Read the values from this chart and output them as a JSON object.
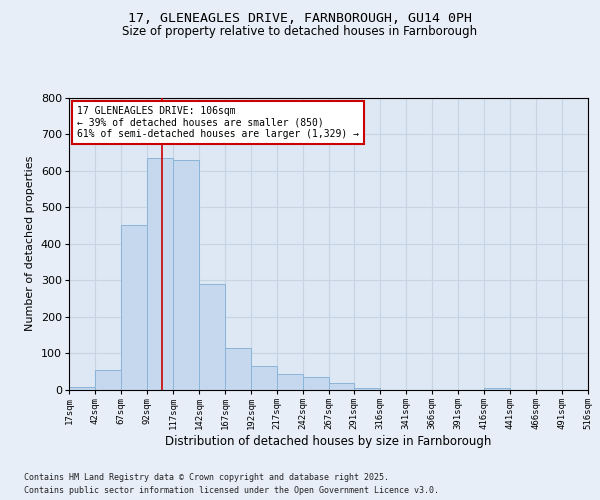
{
  "title1": "17, GLENEAGLES DRIVE, FARNBOROUGH, GU14 0PH",
  "title2": "Size of property relative to detached houses in Farnborough",
  "xlabel": "Distribution of detached houses by size in Farnborough",
  "ylabel": "Number of detached properties",
  "bin_edges": [
    17,
    42,
    67,
    92,
    117,
    142,
    167,
    192,
    217,
    242,
    267,
    291,
    316,
    341,
    366,
    391,
    416,
    441,
    466,
    491,
    516
  ],
  "bin_counts": [
    8,
    55,
    450,
    635,
    630,
    290,
    115,
    65,
    45,
    35,
    20,
    5,
    0,
    0,
    0,
    0,
    5,
    0,
    0,
    0
  ],
  "bar_color": "#c5d8ee",
  "bar_edge_color": "#8ab4d8",
  "grid_color": "#c8d4e4",
  "bg_color": "#dde8f4",
  "fig_bg_color": "#e8eef8",
  "vline_x": 106,
  "vline_color": "#cc0000",
  "annotation_text": "17 GLENEAGLES DRIVE: 106sqm\n← 39% of detached houses are smaller (850)\n61% of semi-detached houses are larger (1,329) →",
  "annotation_box_facecolor": "#ffffff",
  "annotation_box_edgecolor": "#cc0000",
  "footnote1": "Contains HM Land Registry data © Crown copyright and database right 2025.",
  "footnote2": "Contains public sector information licensed under the Open Government Licence v3.0.",
  "ylim": [
    0,
    800
  ],
  "yticks": [
    0,
    100,
    200,
    300,
    400,
    500,
    600,
    700,
    800
  ],
  "tick_labels": [
    "17sqm",
    "42sqm",
    "67sqm",
    "92sqm",
    "117sqm",
    "142sqm",
    "167sqm",
    "192sqm",
    "217sqm",
    "242sqm",
    "267sqm",
    "291sqm",
    "316sqm",
    "341sqm",
    "366sqm",
    "391sqm",
    "416sqm",
    "441sqm",
    "466sqm",
    "491sqm",
    "516sqm"
  ]
}
